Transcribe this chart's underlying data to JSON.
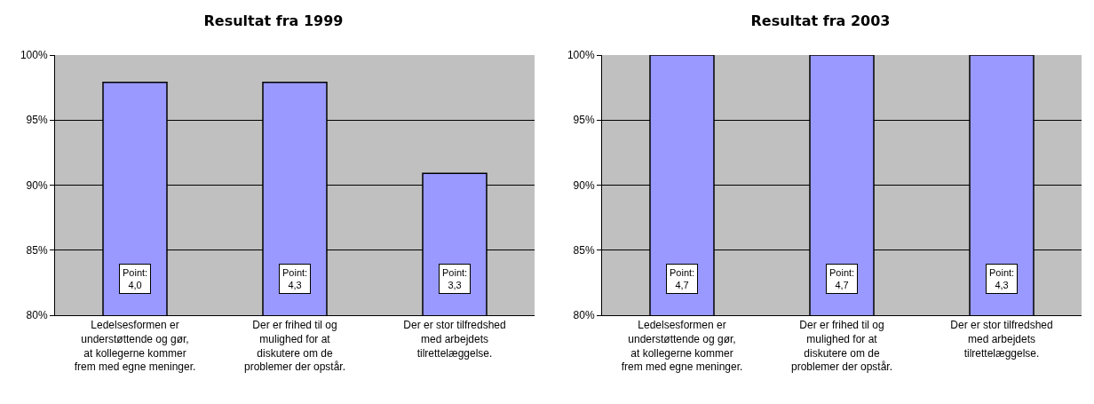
{
  "chart_data": [
    {
      "type": "bar",
      "title": "Resultat fra 1999",
      "categories": [
        "Ledelsesformen er understøttende og gør, at kollegerne kommer frem med egne meninger.",
        "Der er frihed til og mulighed for at diskutere om de problemer der opstår.",
        "Der er stor tilfredshed med arbejdets tilrettelæggelse."
      ],
      "values": [
        97.9,
        97.9,
        90.9
      ],
      "color": "#9999ff",
      "ylim": [
        80,
        100
      ],
      "yticks": [
        {
          "value": 80,
          "label": "80%"
        },
        {
          "value": 85,
          "label": "85%"
        },
        {
          "value": 90,
          "label": "90%"
        },
        {
          "value": 95,
          "label": "95%"
        },
        {
          "value": 100,
          "label": "100%"
        }
      ],
      "grid": "y",
      "annotations": [
        "Point:\n4,0",
        "Point:\n4,3",
        "Point:\n3,3"
      ]
    },
    {
      "type": "bar",
      "title": "Resultat fra 2003",
      "categories": [
        "Ledelsesformen er understøttende og gør, at kollegerne kommer frem med egne meninger.",
        "Der er frihed til og mulighed for at diskutere om de problemer der opstår.",
        "Der er stor tilfredshed med arbejdets tilrettelæggelse."
      ],
      "values": [
        100,
        100,
        100
      ],
      "color": "#9999ff",
      "ylim": [
        80,
        100
      ],
      "yticks": [
        {
          "value": 80,
          "label": "80%"
        },
        {
          "value": 85,
          "label": "85%"
        },
        {
          "value": 90,
          "label": "90%"
        },
        {
          "value": 95,
          "label": "95%"
        },
        {
          "value": 100,
          "label": "100%"
        }
      ],
      "grid": "y",
      "annotations": [
        "Point:\n4,7",
        "Point:\n4,7",
        "Point:\n4,3"
      ]
    }
  ]
}
